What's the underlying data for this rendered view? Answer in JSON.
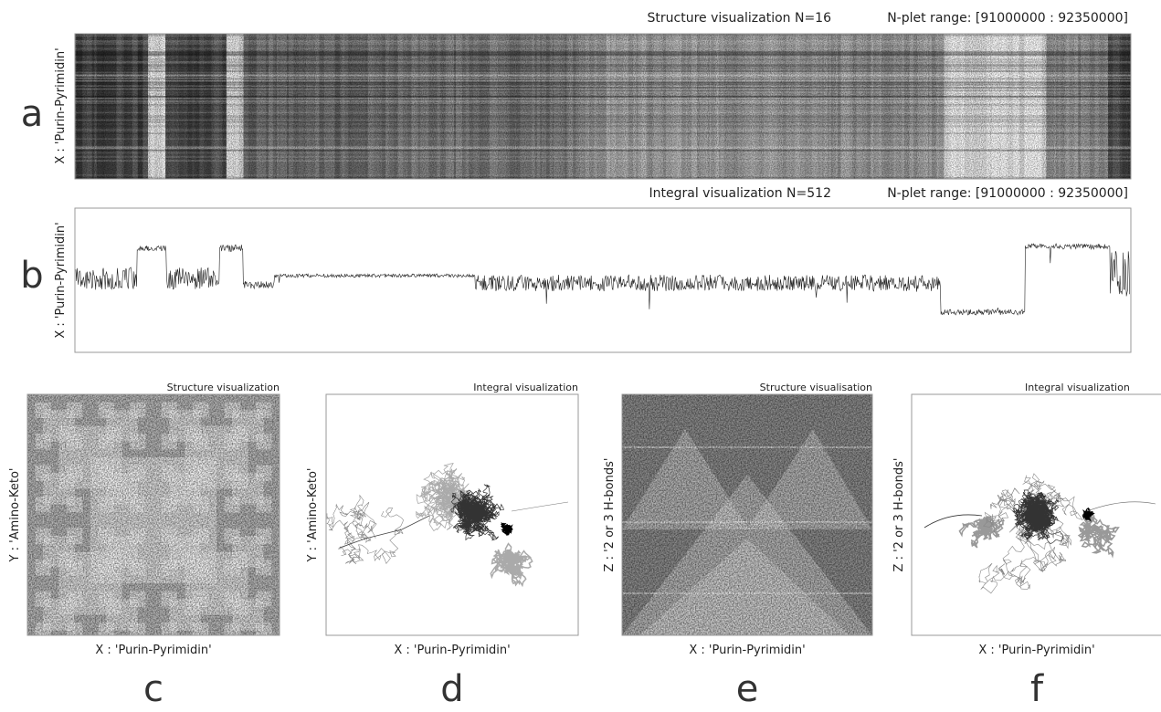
{
  "panels": [
    {
      "letter": "a",
      "title": "Structure visualization N=16",
      "range": "N-plet range: [91000000 : 92350000]",
      "y_label": "X : 'Purin-Pyrimidin'"
    },
    {
      "letter": "b",
      "title": "Integral visualization N=512",
      "range": "N-plet range: [91000000 : 92350000]",
      "y_label": "X : 'Purin-Pyrimidin'"
    },
    {
      "letter": "c",
      "title": "Structure visualization",
      "y_label": "Y : 'Amino-Keto'",
      "x_label": "X : 'Purin-Pyrimidin'"
    },
    {
      "letter": "d",
      "title": "Integral visualization",
      "y_label": "Y : 'Amino-Keto'",
      "x_label": "X : 'Purin-Pyrimidin'"
    },
    {
      "letter": "e",
      "title": "Structure visualisation",
      "y_label": "Z : '2 or 3 H-bonds'",
      "x_label": "X : 'Purin-Pyrimidin'"
    },
    {
      "letter": "f",
      "title": "Integral visualization",
      "y_label": "Z : '2 or 3 H-bonds'",
      "x_label": "X : 'Purin-Pyrimidin'"
    }
  ]
}
